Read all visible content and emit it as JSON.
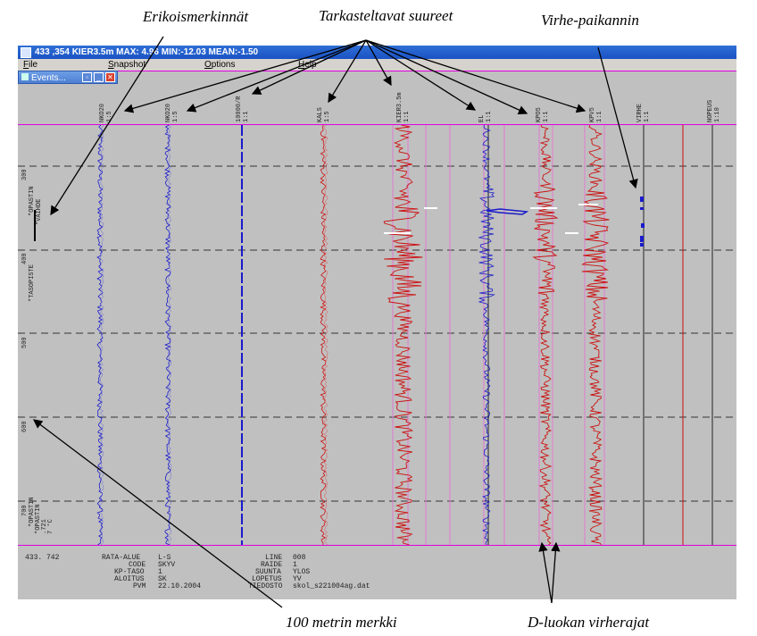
{
  "annotations": {
    "erikoismerkinnat": "Erikoismerkinnät",
    "tarkasteltavat": "Tarkasteltavat suureet",
    "virhe_paikannin": "Virhe-paikannin",
    "metrin_merkki": "100 metrin merkki",
    "d_luokan": "D-luokan virherajat"
  },
  "window": {
    "title": "433   ,354  KIER3.5m MAX: 4.96 MIN:-12.03 MEAN:-1.50",
    "menu": [
      "File",
      "Snapshot",
      "Options",
      "Help"
    ],
    "events_title": "Events...",
    "events_buttons": [
      "restore-button",
      "minimize-button",
      "close-button"
    ]
  },
  "channels": [
    {
      "name": "NKO20",
      "scale": "1:5"
    },
    {
      "name": "NKO20",
      "scale": "1:5"
    },
    {
      "name": "10000/R",
      "scale": "1:1"
    },
    {
      "name": "KALS",
      "scale": "1:5"
    },
    {
      "name": "KIER3.5m",
      "scale": "1:1"
    },
    {
      "name": "EL",
      "scale": "1:1"
    },
    {
      "name": "KPO5",
      "scale": "1:1"
    },
    {
      "name": "KPV5",
      "scale": "1:1"
    },
    {
      "name": "VIRHE",
      "scale": "1:1"
    },
    {
      "name": "NOPEUS",
      "scale": "1:10"
    }
  ],
  "distance_markers": [
    "300",
    "400",
    "500",
    "600",
    "700"
  ],
  "events_text": {
    "e1": "*OPASTIN",
    "e2": "*VAIHDE",
    "e3": "*TASOPISTE",
    "e4": "*OPASTIN",
    "e5": "*OPASTIN",
    "e6": ".721",
    "e7": "7 °C"
  },
  "colors": {
    "blue_trace": "#1a1acc",
    "red_trace": "#cc1111",
    "limit": "#e07ad0",
    "grid": "#333333",
    "titlebar": "#1a52c4"
  },
  "info": {
    "position": "433. 742",
    "rata_alue_label": "RATA-ALUE",
    "rata_alue": "L-S",
    "code_label": "CODE",
    "code": "SKYV",
    "kp_taso_label": "KP-TASO",
    "kp_taso": "1",
    "aloitus_label": "ALOITUS",
    "aloitus": "SK",
    "pvm_label": "PVM",
    "pvm": "22.10.2004",
    "line_label": "LINE",
    "line": "008",
    "raide_label": "RAIDE",
    "raide": "1",
    "suunta_label": "SUUNTA",
    "suunta": "YLOS",
    "lopetus_label": "LOPETUS",
    "lopetus": "YV",
    "tiedosto_label": "TIEDOSTO",
    "tiedosto": "skol_s221004ag.dat"
  }
}
